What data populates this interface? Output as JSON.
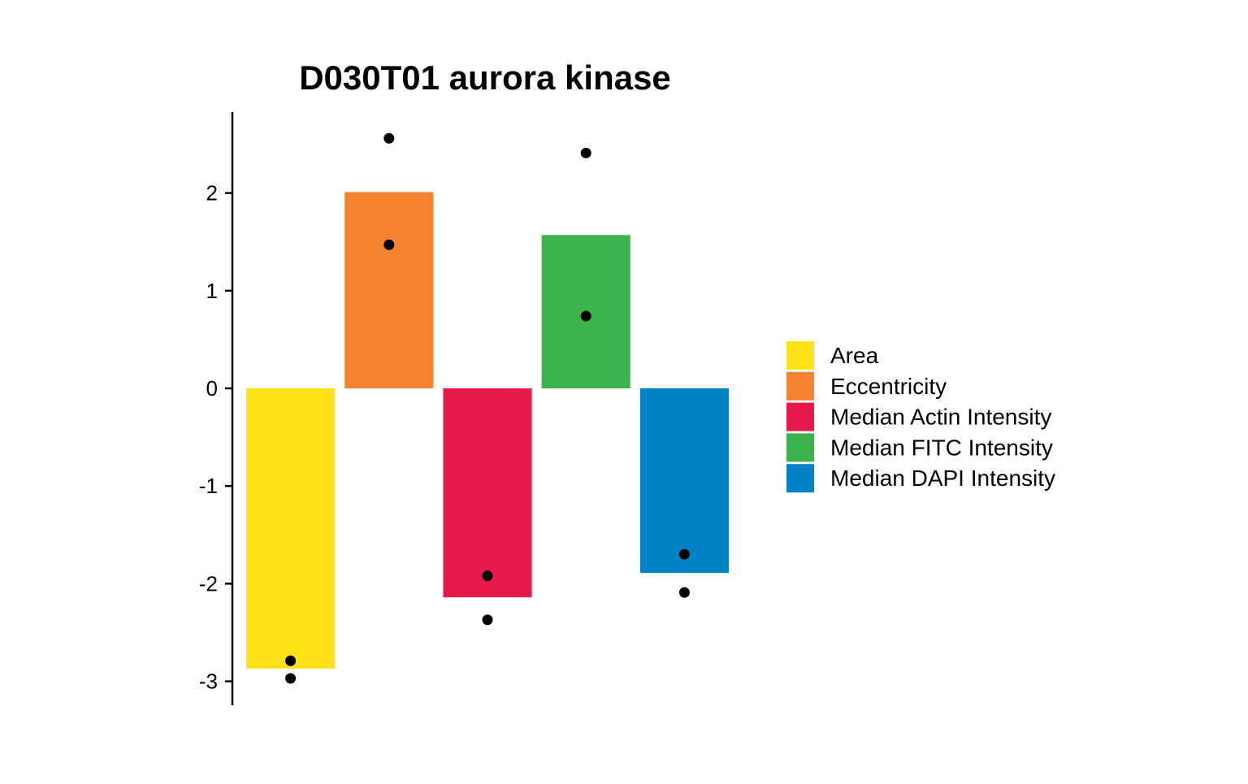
{
  "chart_data": {
    "type": "bar",
    "title": "D030T01 aurora kinase",
    "xlabel": "",
    "ylabel": "",
    "categories": [
      "Area",
      "Eccentricity",
      "Median Actin Intensity",
      "Median FITC Intensity",
      "Median DAPI Intensity"
    ],
    "values": [
      -2.87,
      2.01,
      -2.14,
      1.57,
      -1.89
    ],
    "points": [
      [
        -2.79,
        -2.97
      ],
      [
        2.56,
        1.47
      ],
      [
        -1.92,
        -2.37
      ],
      [
        2.41,
        0.74
      ],
      [
        -1.7,
        -2.09
      ]
    ],
    "colors": [
      "#FFE119",
      "#F58231",
      "#E6194B",
      "#3CB44B",
      "#0082C8"
    ],
    "ylim": [
      -3.25,
      2.8
    ],
    "yticks": [
      -3,
      -2,
      -1,
      0,
      1,
      2
    ],
    "ytick_labels": [
      "-3",
      "-2",
      "-1",
      "0",
      "1",
      "2"
    ],
    "grid": false,
    "legend": {
      "placement": "right",
      "entries": [
        "Area",
        "Eccentricity",
        "Median Actin Intensity",
        "Median FITC Intensity",
        "Median DAPI Intensity"
      ]
    }
  }
}
